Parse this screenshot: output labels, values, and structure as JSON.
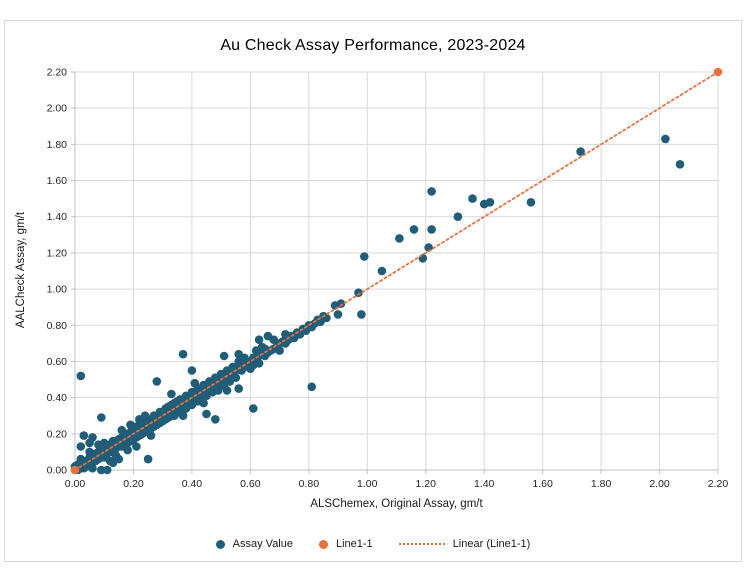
{
  "chart_data": {
    "type": "scatter",
    "title": "Au Check Assay Performance, 2023-2024",
    "xlabel": "ALSChemex, Original Assay, gm/t",
    "ylabel": "AALCheck Assay, gm/t",
    "xlim": [
      0,
      2.2
    ],
    "ylim": [
      0,
      2.2
    ],
    "tick_step": 0.2,
    "tick_decimals": 2,
    "grid": true,
    "legend_position": "bottom",
    "colors": {
      "background": "#ffffff",
      "frame_border": "#d8d8d8",
      "grid": "#d9d9d9",
      "axis": "#bfbfbf",
      "tick_text": "#262626",
      "assay_teal": "#1f5d78",
      "line_orange": "#e8713a"
    },
    "series": [
      {
        "name": "Assay Value",
        "type": "scatter",
        "marker": "circle",
        "color": "#1f5d78",
        "points": [
          [
            0.0,
            0.0
          ],
          [
            0.0,
            0.02
          ],
          [
            0.01,
            0.0
          ],
          [
            0.01,
            0.01
          ],
          [
            0.01,
            0.03
          ],
          [
            0.02,
            0.01
          ],
          [
            0.02,
            0.03
          ],
          [
            0.02,
            0.06
          ],
          [
            0.02,
            0.13
          ],
          [
            0.02,
            0.52
          ],
          [
            0.03,
            0.03
          ],
          [
            0.03,
            0.01
          ],
          [
            0.03,
            0.05
          ],
          [
            0.03,
            0.19
          ],
          [
            0.04,
            0.03
          ],
          [
            0.04,
            0.05
          ],
          [
            0.04,
            0.02
          ],
          [
            0.05,
            0.05
          ],
          [
            0.05,
            0.04
          ],
          [
            0.05,
            0.07
          ],
          [
            0.05,
            0.1
          ],
          [
            0.05,
            0.15
          ],
          [
            0.06,
            0.05
          ],
          [
            0.06,
            0.08
          ],
          [
            0.06,
            0.01
          ],
          [
            0.06,
            0.18
          ],
          [
            0.07,
            0.07
          ],
          [
            0.07,
            0.05
          ],
          [
            0.07,
            0.09
          ],
          [
            0.08,
            0.07
          ],
          [
            0.08,
            0.1
          ],
          [
            0.08,
            0.06
          ],
          [
            0.08,
            0.14
          ],
          [
            0.09,
            0.09
          ],
          [
            0.09,
            0.07
          ],
          [
            0.09,
            0.12
          ],
          [
            0.09,
            0.29
          ],
          [
            0.09,
            0.0
          ],
          [
            0.1,
            0.09
          ],
          [
            0.1,
            0.11
          ],
          [
            0.1,
            0.07
          ],
          [
            0.1,
            0.15
          ],
          [
            0.11,
            0.11
          ],
          [
            0.11,
            0.09
          ],
          [
            0.11,
            0.13
          ],
          [
            0.11,
            0.0
          ],
          [
            0.12,
            0.11
          ],
          [
            0.12,
            0.14
          ],
          [
            0.12,
            0.1
          ],
          [
            0.12,
            0.05
          ],
          [
            0.13,
            0.13
          ],
          [
            0.13,
            0.11
          ],
          [
            0.13,
            0.16
          ],
          [
            0.13,
            0.04
          ],
          [
            0.14,
            0.13
          ],
          [
            0.14,
            0.15
          ],
          [
            0.14,
            0.12
          ],
          [
            0.14,
            0.08
          ],
          [
            0.15,
            0.15
          ],
          [
            0.15,
            0.13
          ],
          [
            0.15,
            0.17
          ],
          [
            0.15,
            0.06
          ],
          [
            0.16,
            0.15
          ],
          [
            0.16,
            0.18
          ],
          [
            0.16,
            0.13
          ],
          [
            0.16,
            0.22
          ],
          [
            0.17,
            0.17
          ],
          [
            0.17,
            0.14
          ],
          [
            0.17,
            0.19
          ],
          [
            0.18,
            0.17
          ],
          [
            0.18,
            0.2
          ],
          [
            0.18,
            0.15
          ],
          [
            0.18,
            0.11
          ],
          [
            0.19,
            0.19
          ],
          [
            0.19,
            0.16
          ],
          [
            0.19,
            0.21
          ],
          [
            0.19,
            0.25
          ],
          [
            0.2,
            0.19
          ],
          [
            0.2,
            0.22
          ],
          [
            0.2,
            0.17
          ],
          [
            0.21,
            0.21
          ],
          [
            0.21,
            0.18
          ],
          [
            0.21,
            0.24
          ],
          [
            0.21,
            0.13
          ],
          [
            0.22,
            0.21
          ],
          [
            0.22,
            0.24
          ],
          [
            0.22,
            0.19
          ],
          [
            0.22,
            0.28
          ],
          [
            0.23,
            0.23
          ],
          [
            0.23,
            0.2
          ],
          [
            0.23,
            0.26
          ],
          [
            0.24,
            0.23
          ],
          [
            0.24,
            0.26
          ],
          [
            0.24,
            0.21
          ],
          [
            0.24,
            0.3
          ],
          [
            0.25,
            0.25
          ],
          [
            0.25,
            0.22
          ],
          [
            0.25,
            0.27
          ],
          [
            0.25,
            0.06
          ],
          [
            0.26,
            0.25
          ],
          [
            0.26,
            0.28
          ],
          [
            0.26,
            0.23
          ],
          [
            0.26,
            0.19
          ],
          [
            0.27,
            0.27
          ],
          [
            0.27,
            0.24
          ],
          [
            0.27,
            0.3
          ],
          [
            0.28,
            0.27
          ],
          [
            0.28,
            0.3
          ],
          [
            0.28,
            0.25
          ],
          [
            0.28,
            0.49
          ],
          [
            0.29,
            0.29
          ],
          [
            0.29,
            0.26
          ],
          [
            0.29,
            0.32
          ],
          [
            0.3,
            0.29
          ],
          [
            0.3,
            0.32
          ],
          [
            0.3,
            0.27
          ],
          [
            0.31,
            0.31
          ],
          [
            0.31,
            0.28
          ],
          [
            0.31,
            0.34
          ],
          [
            0.32,
            0.32
          ],
          [
            0.32,
            0.29
          ],
          [
            0.32,
            0.35
          ],
          [
            0.33,
            0.33
          ],
          [
            0.33,
            0.3
          ],
          [
            0.33,
            0.36
          ],
          [
            0.33,
            0.42
          ],
          [
            0.34,
            0.33
          ],
          [
            0.34,
            0.37
          ],
          [
            0.34,
            0.3
          ],
          [
            0.35,
            0.35
          ],
          [
            0.35,
            0.32
          ],
          [
            0.35,
            0.38
          ],
          [
            0.36,
            0.35
          ],
          [
            0.36,
            0.39
          ],
          [
            0.36,
            0.32
          ],
          [
            0.37,
            0.37
          ],
          [
            0.37,
            0.34
          ],
          [
            0.37,
            0.64
          ],
          [
            0.37,
            0.3
          ],
          [
            0.38,
            0.37
          ],
          [
            0.38,
            0.41
          ],
          [
            0.38,
            0.34
          ],
          [
            0.39,
            0.39
          ],
          [
            0.39,
            0.36
          ],
          [
            0.4,
            0.39
          ],
          [
            0.4,
            0.43
          ],
          [
            0.4,
            0.36
          ],
          [
            0.4,
            0.55
          ],
          [
            0.41,
            0.41
          ],
          [
            0.41,
            0.38
          ],
          [
            0.41,
            0.48
          ],
          [
            0.42,
            0.41
          ],
          [
            0.42,
            0.45
          ],
          [
            0.42,
            0.38
          ],
          [
            0.43,
            0.43
          ],
          [
            0.43,
            0.4
          ],
          [
            0.44,
            0.43
          ],
          [
            0.44,
            0.47
          ],
          [
            0.44,
            0.37
          ],
          [
            0.45,
            0.45
          ],
          [
            0.45,
            0.41
          ],
          [
            0.45,
            0.31
          ],
          [
            0.46,
            0.45
          ],
          [
            0.46,
            0.49
          ],
          [
            0.47,
            0.47
          ],
          [
            0.47,
            0.43
          ],
          [
            0.48,
            0.47
          ],
          [
            0.48,
            0.51
          ],
          [
            0.48,
            0.28
          ],
          [
            0.49,
            0.49
          ],
          [
            0.49,
            0.45
          ],
          [
            0.49,
            0.44
          ],
          [
            0.5,
            0.49
          ],
          [
            0.5,
            0.53
          ],
          [
            0.51,
            0.51
          ],
          [
            0.51,
            0.47
          ],
          [
            0.51,
            0.63
          ],
          [
            0.52,
            0.51
          ],
          [
            0.52,
            0.55
          ],
          [
            0.52,
            0.44
          ],
          [
            0.53,
            0.53
          ],
          [
            0.53,
            0.49
          ],
          [
            0.54,
            0.53
          ],
          [
            0.54,
            0.57
          ],
          [
            0.55,
            0.55
          ],
          [
            0.55,
            0.51
          ],
          [
            0.56,
            0.56
          ],
          [
            0.56,
            0.6
          ],
          [
            0.56,
            0.64
          ],
          [
            0.56,
            0.45
          ],
          [
            0.57,
            0.55
          ],
          [
            0.57,
            0.59
          ],
          [
            0.58,
            0.57
          ],
          [
            0.58,
            0.62
          ],
          [
            0.59,
            0.58
          ],
          [
            0.6,
            0.6
          ],
          [
            0.6,
            0.56
          ],
          [
            0.61,
            0.62
          ],
          [
            0.61,
            0.58
          ],
          [
            0.61,
            0.34
          ],
          [
            0.62,
            0.61
          ],
          [
            0.62,
            0.66
          ],
          [
            0.63,
            0.63
          ],
          [
            0.63,
            0.59
          ],
          [
            0.63,
            0.72
          ],
          [
            0.64,
            0.64
          ],
          [
            0.64,
            0.68
          ],
          [
            0.65,
            0.63
          ],
          [
            0.65,
            0.67
          ],
          [
            0.66,
            0.65
          ],
          [
            0.66,
            0.74
          ],
          [
            0.67,
            0.66
          ],
          [
            0.68,
            0.67
          ],
          [
            0.68,
            0.72
          ],
          [
            0.69,
            0.68
          ],
          [
            0.7,
            0.7
          ],
          [
            0.7,
            0.66
          ],
          [
            0.71,
            0.71
          ],
          [
            0.72,
            0.7
          ],
          [
            0.72,
            0.75
          ],
          [
            0.73,
            0.72
          ],
          [
            0.74,
            0.74
          ],
          [
            0.75,
            0.73
          ],
          [
            0.76,
            0.76
          ],
          [
            0.77,
            0.75
          ],
          [
            0.78,
            0.78
          ],
          [
            0.79,
            0.77
          ],
          [
            0.8,
            0.8
          ],
          [
            0.81,
            0.79
          ],
          [
            0.81,
            0.46
          ],
          [
            0.82,
            0.81
          ],
          [
            0.83,
            0.83
          ],
          [
            0.84,
            0.82
          ],
          [
            0.85,
            0.85
          ],
          [
            0.86,
            0.84
          ],
          [
            0.89,
            0.91
          ],
          [
            0.9,
            0.86
          ],
          [
            0.91,
            0.92
          ],
          [
            0.97,
            0.98
          ],
          [
            0.98,
            0.86
          ],
          [
            0.99,
            1.18
          ],
          [
            1.05,
            1.1
          ],
          [
            1.11,
            1.28
          ],
          [
            1.16,
            1.33
          ],
          [
            1.19,
            1.17
          ],
          [
            1.21,
            1.23
          ],
          [
            1.22,
            1.33
          ],
          [
            1.22,
            1.54
          ],
          [
            1.31,
            1.4
          ],
          [
            1.36,
            1.5
          ],
          [
            1.4,
            1.47
          ],
          [
            1.42,
            1.48
          ],
          [
            1.56,
            1.48
          ],
          [
            1.73,
            1.76
          ],
          [
            2.02,
            1.83
          ],
          [
            2.07,
            1.69
          ]
        ]
      },
      {
        "name": "Line1-1",
        "type": "scatter",
        "marker": "circle",
        "color": "#e8713a",
        "points": [
          [
            0.0,
            0.0
          ],
          [
            2.2,
            2.2
          ]
        ]
      },
      {
        "name": "Linear (Line1-1)",
        "type": "trendline",
        "style": "dotted",
        "color": "#e8713a",
        "points": [
          [
            0.0,
            0.0
          ],
          [
            2.2,
            2.2
          ]
        ]
      }
    ]
  }
}
